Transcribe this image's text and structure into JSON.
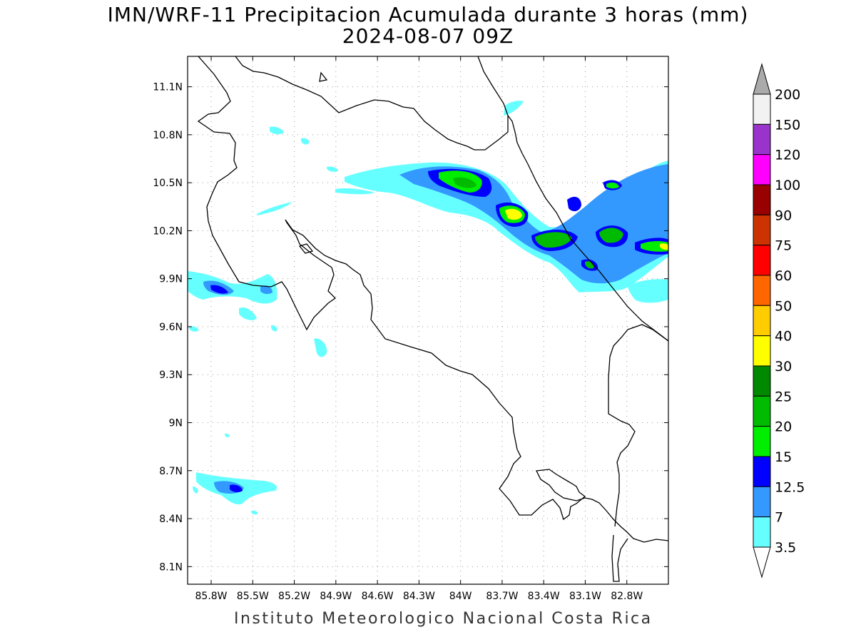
{
  "title": {
    "line1": "IMN/WRF-11 Precipitacion Acumulada durante 3 horas (mm)",
    "line2": "2024-08-07 09Z"
  },
  "footer": "Instituto Meteorologico Nacional Costa Rica",
  "axes": {
    "lon_labels": [
      "85.8W",
      "85.5W",
      "85.2W",
      "84.9W",
      "84.6W",
      "84.3W",
      "84W",
      "83.7W",
      "83.4W",
      "83.1W",
      "82.8W"
    ],
    "lat_labels": [
      "11.1N",
      "10.8N",
      "10.5N",
      "10.2N",
      "9.9N",
      "9.6N",
      "9.3N",
      "9N",
      "8.7N",
      "8.4N",
      "8.1N"
    ],
    "lon_range": [
      -85.97,
      -82.5
    ],
    "lat_range": [
      7.99,
      11.29
    ]
  },
  "colorbar": {
    "levels": [
      "200",
      "150",
      "120",
      "100",
      "90",
      "75",
      "60",
      "50",
      "40",
      "30",
      "25",
      "20",
      "15",
      "12.5",
      "7",
      "3.5"
    ],
    "colors": [
      "#f2f2f2",
      "#9933cc",
      "#ff00ff",
      "#990000",
      "#cc3300",
      "#ff0000",
      "#ff6600",
      "#ffcc00",
      "#ffff00",
      "#008800",
      "#00bb00",
      "#00ee00",
      "#0000ff",
      "#3399ff",
      "#66ffff",
      "#ffffff"
    ]
  },
  "precip_cells": [
    {
      "lon": -84.28,
      "lat": 10.52,
      "level": "7"
    },
    {
      "lon": -84.02,
      "lat": 10.5,
      "level": "20"
    },
    {
      "lon": -83.7,
      "lat": 10.32,
      "level": "30"
    },
    {
      "lon": -83.35,
      "lat": 10.15,
      "level": "20"
    },
    {
      "lon": -83.0,
      "lat": 10.18,
      "level": "20"
    },
    {
      "lon": -82.95,
      "lat": 10.48,
      "level": "15"
    },
    {
      "lon": -82.6,
      "lat": 10.1,
      "level": "40"
    },
    {
      "lon": -85.75,
      "lat": 9.85,
      "level": "12.5"
    },
    {
      "lon": -85.7,
      "lat": 8.6,
      "level": "12.5"
    }
  ]
}
